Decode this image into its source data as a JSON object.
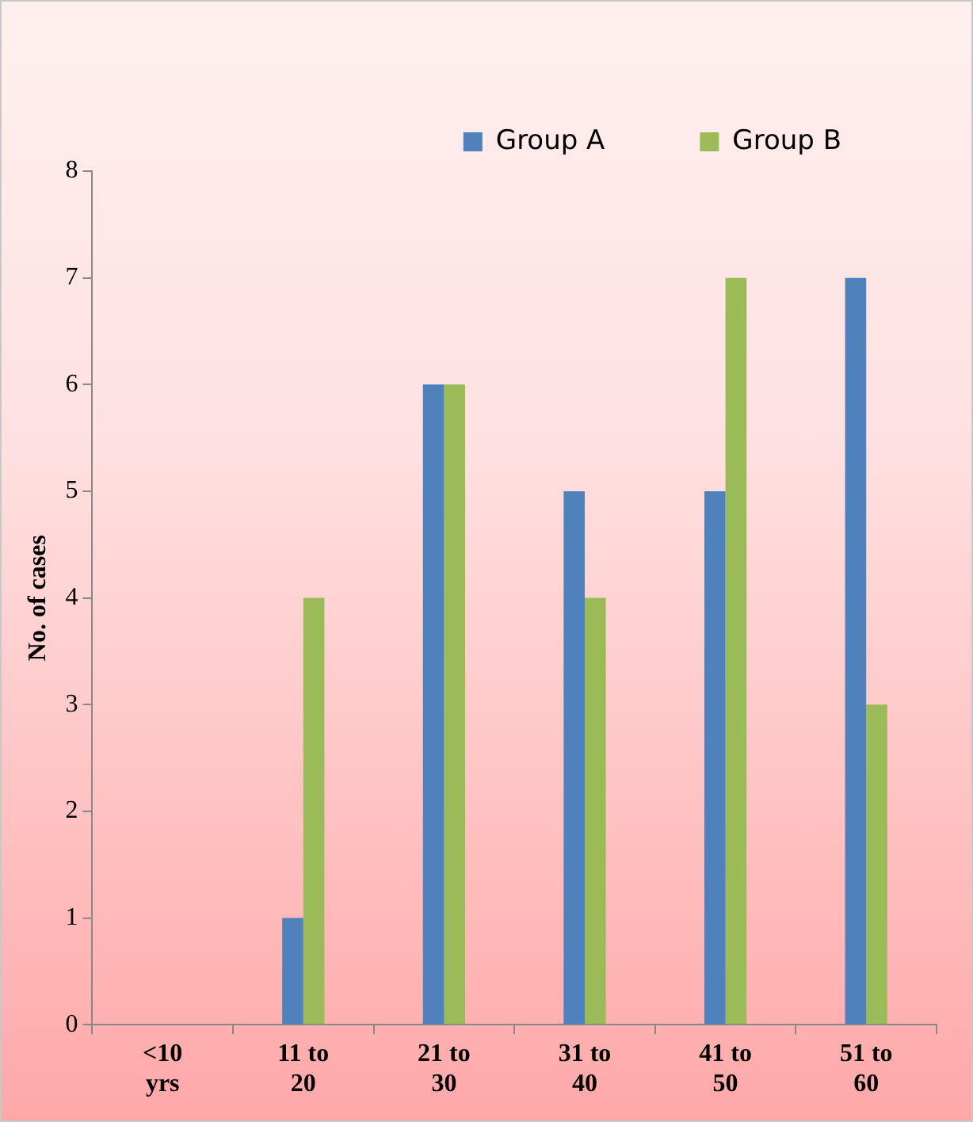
{
  "chart_data": {
    "type": "bar",
    "ylabel": "No. of cases",
    "categories": [
      "<10 yrs",
      "11 to 20",
      "21 to 30",
      "31 to 40",
      "41 to 50",
      "51 to 60"
    ],
    "series": [
      {
        "name": "Group A",
        "color": "#4f81bd",
        "values": [
          0,
          1,
          6,
          5,
          5,
          7
        ]
      },
      {
        "name": "Group B",
        "color": "#9bbb59",
        "values": [
          0,
          4,
          6,
          4,
          7,
          3
        ]
      }
    ],
    "ylim": [
      0,
      8
    ],
    "yticks": [
      0,
      1,
      2,
      3,
      4,
      5,
      6,
      7,
      8
    ],
    "grid": false,
    "legend": "top right"
  }
}
